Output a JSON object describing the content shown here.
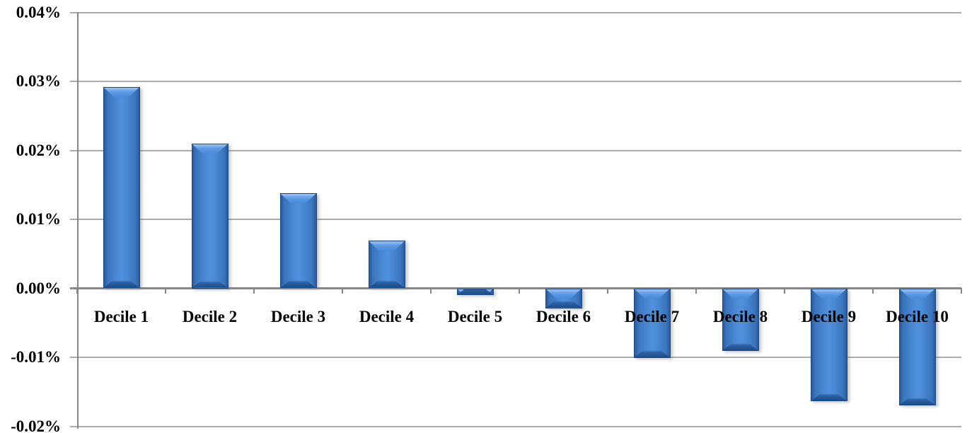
{
  "chart_data": {
    "type": "bar",
    "title": "",
    "xlabel": "",
    "ylabel": "",
    "categories": [
      "Decile 1",
      "Decile 2",
      "Decile 3",
      "Decile 4",
      "Decile 5",
      "Decile 6",
      "Decile 7",
      "Decile 8",
      "Decile 9",
      "Decile 10"
    ],
    "values": [
      0.0292,
      0.021,
      0.0138,
      0.0069,
      -0.001,
      -0.0029,
      -0.0101,
      -0.0091,
      -0.0164,
      -0.017
    ],
    "value_unit": "percent",
    "ylim": [
      -0.02,
      0.04
    ],
    "ytick_step": 0.01,
    "yticks": [
      0.04,
      0.03,
      0.02,
      0.01,
      0.0,
      -0.01,
      -0.02
    ],
    "ytick_labels": [
      "0.04%",
      "0.03%",
      "0.02%",
      "0.01%",
      "0.00%",
      "-0.01%",
      "-0.02%"
    ],
    "grid": true,
    "legend": "none",
    "colors": {
      "bar_fill": "#4A89D4",
      "bar_edge": "#1D4A82",
      "bar_highlight": "#9CC4F4",
      "gridline_color": "#ACACAC",
      "axis_color": "#878787",
      "text_color": "#000000",
      "background": "#FFFFFF"
    }
  }
}
